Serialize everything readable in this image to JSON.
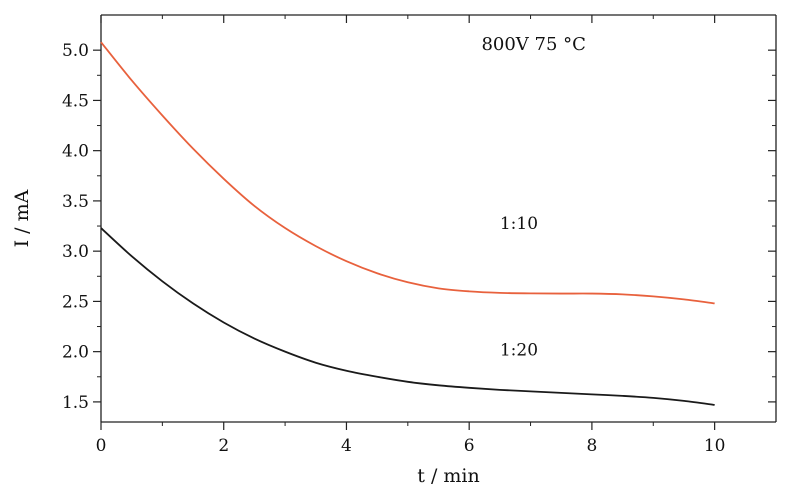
{
  "chart_data": {
    "type": "line",
    "xlabel": "t / min",
    "ylabel": "I / mA",
    "xlim": [
      0,
      11
    ],
    "ylim": [
      1.3,
      5.35
    ],
    "x_ticks": [
      0,
      2,
      4,
      6,
      8,
      10
    ],
    "x_tick_labels": [
      "0",
      "2",
      "4",
      "6",
      "8",
      "10"
    ],
    "y_ticks": [
      1.5,
      2.0,
      2.5,
      3.0,
      3.5,
      4.0,
      4.5,
      5.0
    ],
    "y_tick_labels": [
      "1.5",
      "2.0",
      "2.5",
      "3.0",
      "3.5",
      "4.0",
      "4.5",
      "5.0"
    ],
    "grid": false,
    "legend": "none",
    "annotations": [
      {
        "text": "800V    75 °C",
        "x": 6.2,
        "y": 5.0
      },
      {
        "text": "1:10",
        "x": 6.5,
        "y": 3.22
      },
      {
        "text": "1:20",
        "x": 6.5,
        "y": 1.96
      }
    ],
    "series": [
      {
        "name": "1:10",
        "color": "#e8613d",
        "x": [
          0,
          0.5,
          1,
          1.5,
          2,
          2.5,
          3,
          3.5,
          4,
          4.5,
          5,
          5.5,
          6,
          6.5,
          7,
          7.5,
          8,
          8.5,
          9,
          9.5,
          10
        ],
        "y": [
          5.08,
          4.7,
          4.35,
          4.02,
          3.72,
          3.45,
          3.23,
          3.05,
          2.9,
          2.78,
          2.69,
          2.63,
          2.6,
          2.585,
          2.58,
          2.578,
          2.578,
          2.57,
          2.55,
          2.52,
          2.48
        ]
      },
      {
        "name": "1:20",
        "color": "#1a1a1a",
        "x": [
          0,
          0.5,
          1,
          1.5,
          2,
          2.5,
          3,
          3.5,
          4,
          4.5,
          5,
          5.5,
          6,
          6.5,
          7,
          7.5,
          8,
          8.5,
          9,
          9.5,
          10
        ],
        "y": [
          3.23,
          2.95,
          2.7,
          2.48,
          2.29,
          2.13,
          2.0,
          1.89,
          1.81,
          1.75,
          1.7,
          1.665,
          1.64,
          1.62,
          1.605,
          1.59,
          1.575,
          1.56,
          1.54,
          1.51,
          1.47
        ]
      }
    ]
  }
}
